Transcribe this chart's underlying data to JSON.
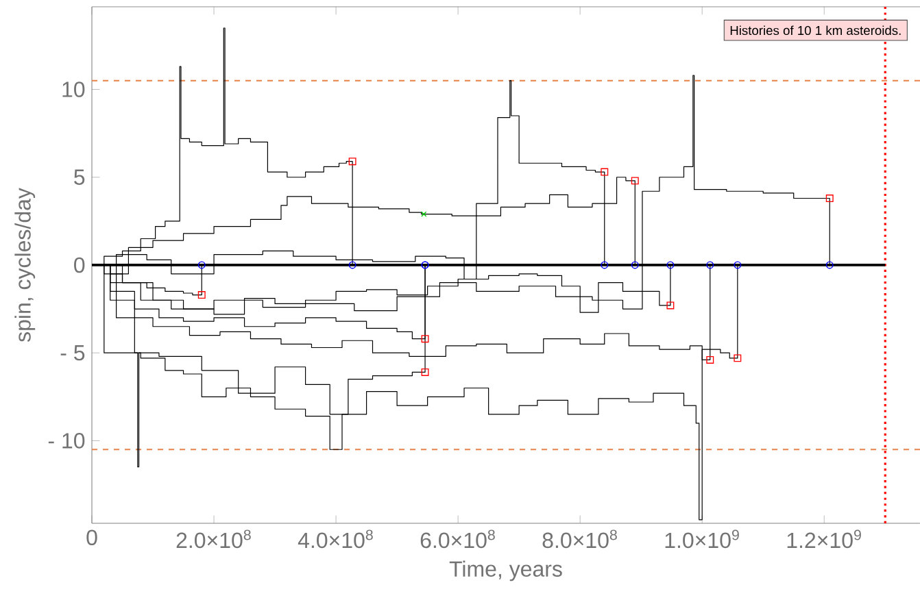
{
  "chart_data": {
    "type": "step",
    "xlabel": "Time, years",
    "ylabel": "spin, cycles/day",
    "annotations": [
      "Histories of 10 1 km asteroids."
    ],
    "xlim": [
      0,
      1357000000.0
    ],
    "ylim": [
      -14.7,
      14.7
    ],
    "xticks": [
      0,
      {
        "value": 200000000.0,
        "label": "2.0×10$^{8}$"
      },
      {
        "value": 400000000.0,
        "label": "4.0×10$^{8}$"
      },
      {
        "value": 600000000.0,
        "label": "6.0×10$^{8}$"
      },
      {
        "value": 800000000.0,
        "label": "8.0×10$^{8}$"
      },
      {
        "value": 1000000000.0,
        "label": "1.0×10$^{9}$"
      },
      {
        "value": 1200000000.0,
        "label": "1.2×10$^{9}$"
      }
    ],
    "yticks": [
      {
        "value": -10,
        "label": "- 10"
      },
      {
        "value": -5,
        "label": "- 5"
      },
      0,
      5,
      10
    ],
    "grid": false,
    "ref_lines": [
      {
        "axis": "y",
        "value": 10.5,
        "color": "#e8824a",
        "line_style": "dashed"
      },
      {
        "axis": "y",
        "value": -10.5,
        "color": "#e8824a",
        "line_style": "dashed"
      },
      {
        "axis": "x",
        "value": 1300000000.0,
        "color": "#ff0000",
        "line_style": "dotted"
      }
    ],
    "series": [
      {
        "type": "line",
        "color": "#000000",
        "x": [
          0,
          1300000000.0
        ],
        "values": [
          0,
          0
        ]
      },
      {
        "color": "#000000",
        "x": [
          0,
          20000000.0,
          50000000.0,
          80000000.0,
          104000000.0,
          120000000.0,
          144000000.0,
          146000000.0,
          160000000.0,
          180000000.0,
          216000000.0,
          218000000.0,
          240000000.0,
          260000000.0,
          288000000.0,
          320000000.0,
          350000000.0,
          380000000.0,
          405000000.0,
          417000000.0,
          427000000.0
        ],
        "values": [
          0,
          0.5,
          0.8,
          1.5,
          2.2,
          2.5,
          11.3,
          7.2,
          7.0,
          6.8,
          13.5,
          6.9,
          7.2,
          7.0,
          5.3,
          5.0,
          5.3,
          5.6,
          5.8,
          5.9,
          0
        ]
      },
      {
        "color": "#000000",
        "x": [
          0,
          30000000.0,
          60000000.0,
          100000000.0,
          150000000.0,
          200000000.0,
          260000000.0,
          310000000.0,
          320000000.0,
          360000000.0,
          420000000.0,
          470000000.0,
          520000000.0,
          540000000.0,
          590000000.0,
          630000000.0,
          665000000.0,
          685000000.0,
          687000000.0,
          700000000.0,
          770000000.0,
          810000000.0,
          825000000.0,
          840000000.0
        ],
        "values": [
          0,
          -0.5,
          1.0,
          1.4,
          1.8,
          2.2,
          2.6,
          3.4,
          3.9,
          3.5,
          3.3,
          3.2,
          3.0,
          2.9,
          2.8,
          3.5,
          8.4,
          10.5,
          8.5,
          5.8,
          5.6,
          5.4,
          5.3,
          0
        ]
      },
      {
        "color": "#000000",
        "x": [
          0,
          40000000.0,
          90000000.0,
          130000000.0,
          200000000.0,
          280000000.0,
          330000000.0,
          400000000.0,
          460000000.0,
          530000000.0,
          580000000.0,
          610000000.0,
          630000000.0,
          670000000.0,
          710000000.0,
          750000000.0,
          780000000.0,
          820000000.0,
          860000000.0,
          875000000.0,
          890000000.0
        ],
        "values": [
          0,
          0.6,
          0.3,
          -0.5,
          0.6,
          0.8,
          0.5,
          0.3,
          0.2,
          0.5,
          0.4,
          -0.8,
          2.8,
          3.3,
          3.5,
          4.0,
          3.3,
          3.5,
          5.0,
          4.8,
          0
        ]
      },
      {
        "color": "#000000",
        "x": [
          0,
          30000000.0,
          80000000.0,
          130000000.0,
          200000000.0,
          280000000.0,
          350000000.0,
          430000000.0,
          500000000.0,
          570000000.0,
          630000000.0,
          700000000.0,
          760000000.0,
          820000000.0,
          870000000.0,
          902000000.0,
          930000000.0,
          970000000.0,
          985000000.0,
          987000000.0,
          1040000000.0,
          1100000000.0,
          1150000000.0,
          1209000000.0
        ],
        "values": [
          0,
          -1.0,
          -2.0,
          -2.5,
          -2.0,
          -2.4,
          -2.2,
          -2.6,
          -1.8,
          -1.0,
          -1.5,
          -1.2,
          -1.8,
          -2.0,
          -2.5,
          4.2,
          5.0,
          5.6,
          10.8,
          4.3,
          4.2,
          4.1,
          3.8,
          0
        ]
      },
      {
        "color": "#000000",
        "x": [
          0,
          20000000.0,
          50000000.0,
          90000000.0,
          120000000.0,
          150000000.0,
          165000000.0,
          180000000.0
        ],
        "values": [
          0,
          -0.5,
          -1.0,
          -1.3,
          -1.5,
          -1.6,
          -1.7,
          0
        ]
      },
      {
        "color": "#000000",
        "x": [
          0,
          30000000.0,
          70000000.0,
          110000000.0,
          150000000.0,
          200000000.0,
          250000000.0,
          300000000.0,
          350000000.0,
          400000000.0,
          450000000.0,
          500000000.0,
          525000000.0,
          546000000.0
        ],
        "values": [
          0,
          -1.5,
          -2.5,
          -3.0,
          -3.2,
          -3.0,
          -3.5,
          -3.3,
          -3.0,
          -3.2,
          -3.6,
          -3.8,
          -4.2,
          0
        ]
      },
      {
        "color": "#000000",
        "x": [
          0,
          30000000.0,
          70000000.0,
          75000000.0,
          77000000.0,
          110000000.0,
          180000000.0,
          240000000.0,
          300000000.0,
          350000000.0,
          390000000.0,
          420000000.0,
          460000000.0,
          525000000.0,
          546000000.0
        ],
        "values": [
          0,
          -2.0,
          -5.0,
          -11.5,
          -5.0,
          -5.2,
          -6.0,
          -7.3,
          -5.8,
          -6.8,
          -8.5,
          -6.5,
          -6.3,
          -6.1,
          0
        ]
      },
      {
        "color": "#000000",
        "x": [
          0,
          50000000.0,
          100000000.0,
          150000000.0,
          200000000.0,
          250000000.0,
          300000000.0,
          350000000.0,
          400000000.0,
          450000000.0,
          500000000.0,
          550000000.0,
          600000000.0,
          650000000.0,
          700000000.0,
          730000000.0,
          770000000.0,
          800000000.0,
          830000000.0,
          870000000.0,
          930000000.0,
          948000000.0
        ],
        "values": [
          0,
          -1.0,
          -2.0,
          -2.5,
          -2.8,
          -1.9,
          -2.2,
          -2.0,
          -1.5,
          -1.4,
          -1.7,
          -1.2,
          -0.8,
          -0.6,
          -0.5,
          -0.6,
          -1.2,
          -2.7,
          -1.0,
          -1.5,
          -2.3,
          0
        ]
      },
      {
        "color": "#000000",
        "x": [
          0,
          40000000.0,
          100000000.0,
          160000000.0,
          210000000.0,
          260000000.0,
          310000000.0,
          360000000.0,
          410000000.0,
          460000000.0,
          520000000.0,
          580000000.0,
          630000000.0,
          680000000.0,
          740000000.0,
          800000000.0,
          840000000.0,
          880000000.0,
          930000000.0,
          980000000.0,
          1000000000.0,
          1013000000.0
        ],
        "values": [
          0,
          -3.0,
          -3.5,
          -4.0,
          -3.8,
          -4.2,
          -4.5,
          -4.7,
          -4.3,
          -5.0,
          -5.2,
          -4.6,
          -4.5,
          -5.0,
          -4.2,
          -4.5,
          -3.9,
          -4.6,
          -4.8,
          -4.6,
          -5.4,
          0
        ]
      },
      {
        "color": "#000000",
        "x": [
          0,
          20000000.0,
          80000000.0,
          120000000.0,
          150000000.0,
          180000000.0,
          220000000.0,
          260000000.0,
          300000000.0,
          350000000.0,
          390000000.0,
          410000000.0,
          450000000.0,
          500000000.0,
          550000000.0,
          610000000.0,
          650000000.0,
          700000000.0,
          730000000.0,
          780000000.0,
          830000000.0,
          880000000.0,
          920000000.0,
          970000000.0,
          990000000.0,
          995000000.0,
          1000000000.0,
          1030000000.0,
          1045000000.0,
          1058000000.0
        ],
        "values": [
          0,
          -5.0,
          -5.3,
          -6.0,
          -6.2,
          -7.5,
          -7.0,
          -7.5,
          -8.2,
          -8.6,
          -10.5,
          -8.5,
          -7.2,
          -8.0,
          -7.5,
          -7.0,
          -8.5,
          -8.0,
          -7.7,
          -8.5,
          -7.6,
          -7.8,
          -7.3,
          -8.0,
          -9.0,
          -14.5,
          -4.8,
          -5.0,
          -5.3,
          0
        ]
      },
      {
        "type": "scatter",
        "marker": "square",
        "color": "#ff0000",
        "x": [
          180000000.0,
          427000000.0,
          546000000.0,
          546000000.0,
          840000000.0,
          890000000.0,
          948000000.0,
          1013000000.0,
          1058000000.0,
          1209000000.0
        ],
        "values": [
          -1.7,
          5.9,
          -4.2,
          -6.1,
          5.3,
          4.8,
          -2.3,
          -5.4,
          -5.3,
          3.8
        ]
      },
      {
        "type": "scatter",
        "marker": "circle",
        "color": "#0000ff",
        "x": [
          180000000.0,
          427000000.0,
          546000000.0,
          546000000.0,
          840000000.0,
          890000000.0,
          948000000.0,
          1013000000.0,
          1058000000.0,
          1209000000.0
        ],
        "values": [
          0,
          0,
          0,
          0,
          0,
          0,
          0,
          0,
          0,
          0
        ]
      },
      {
        "type": "scatter",
        "marker": "cross",
        "color": "#00cc00",
        "x": [
          544000000.0
        ],
        "values": [
          2.9
        ]
      }
    ]
  }
}
